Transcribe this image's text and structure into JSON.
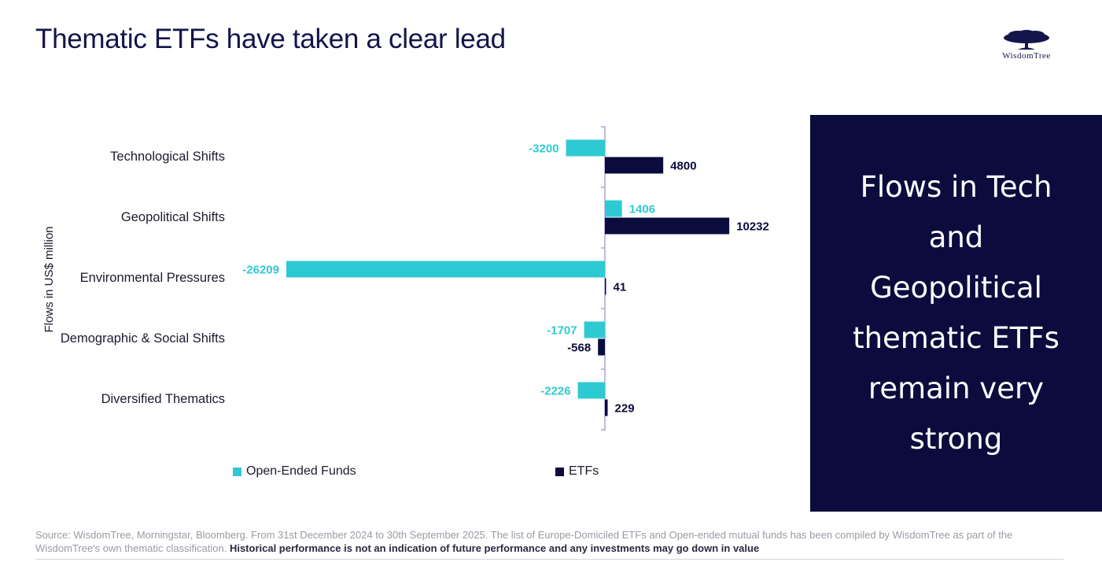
{
  "title": "Thematic ETFs have taken a clear lead",
  "logo": {
    "brand": "WisdomTree"
  },
  "callout": "Flows in Tech and Geopolitical thematic ETFs remain very strong",
  "footer": {
    "source": "Source: WisdomTree, Morningstar, Bloomberg. From 31st December 2024 to 30th September 2025. The list of Europe-Domiciled ETFs and Open-ended mutual funds has been compiled by WisdomTree as part of the WisdomTree's own thematic classification.",
    "disclaimer": "Historical performance is not an indication of future performance and any investments may go down in value"
  },
  "colors": {
    "open_ended": "#2ecad3",
    "etfs": "#0b0c3d",
    "axis": "#a9a6d9"
  },
  "chart_data": {
    "type": "bar",
    "orientation": "horizontal",
    "ylabel": "Flows in US$ million",
    "categories": [
      "Technological Shifts",
      "Geopolitical Shifts",
      "Environmental Pressures",
      "Demographic & Social Shifts",
      "Diversified Thematics"
    ],
    "series": [
      {
        "name": "Open-Ended Funds",
        "values": [
          -3200,
          1406,
          -26209,
          -1707,
          -2226
        ]
      },
      {
        "name": "ETFs",
        "values": [
          4800,
          10232,
          41,
          -568,
          229
        ]
      }
    ],
    "legend_position": "bottom",
    "grid": false
  }
}
